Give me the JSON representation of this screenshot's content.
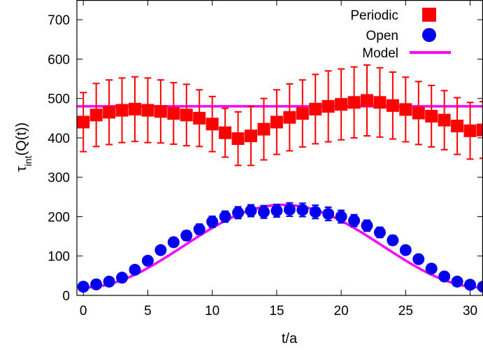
{
  "chart_data": {
    "type": "scatter",
    "xlabel": "t/a",
    "ylabel_main": "τ",
    "ylabel_sub": "int",
    "ylabel_rest": "(Q(t))",
    "xlim": [
      -0.5,
      31
    ],
    "ylim": [
      0,
      750
    ],
    "xticks": [
      0,
      5,
      10,
      15,
      20,
      25,
      30
    ],
    "yticks": [
      0,
      100,
      200,
      300,
      400,
      500,
      600,
      700
    ],
    "legend_position": "top-right",
    "series": [
      {
        "name": "Periodic",
        "marker": "square",
        "color": "#ff0000",
        "x": [
          0,
          1,
          2,
          3,
          4,
          5,
          6,
          7,
          8,
          9,
          10,
          11,
          12,
          13,
          14,
          15,
          16,
          17,
          18,
          19,
          20,
          21,
          22,
          23,
          24,
          25,
          26,
          27,
          28,
          29,
          30,
          31
        ],
        "y": [
          440,
          458,
          465,
          470,
          473,
          470,
          467,
          462,
          458,
          450,
          435,
          413,
          398,
          405,
          422,
          440,
          452,
          462,
          473,
          480,
          485,
          490,
          495,
          490,
          482,
          472,
          463,
          455,
          445,
          430,
          418,
          420
        ],
        "yerr": [
          75,
          80,
          82,
          82,
          82,
          82,
          80,
          78,
          78,
          72,
          70,
          62,
          68,
          75,
          78,
          82,
          85,
          85,
          88,
          90,
          90,
          90,
          90,
          88,
          85,
          82,
          80,
          78,
          75,
          72,
          72,
          72
        ]
      },
      {
        "name": "Open",
        "marker": "circle",
        "color": "#0000ee",
        "x": [
          0,
          1,
          2,
          3,
          4,
          5,
          6,
          7,
          8,
          9,
          10,
          11,
          12,
          13,
          14,
          15,
          16,
          17,
          18,
          19,
          20,
          21,
          22,
          23,
          24,
          25,
          26,
          27,
          28,
          29,
          30,
          31
        ],
        "y": [
          22,
          28,
          35,
          45,
          65,
          88,
          115,
          135,
          152,
          168,
          187,
          200,
          210,
          215,
          212,
          215,
          218,
          217,
          212,
          207,
          200,
          190,
          177,
          160,
          140,
          115,
          92,
          68,
          48,
          35,
          27,
          22
        ],
        "yerr": [
          5,
          5,
          6,
          7,
          8,
          9,
          10,
          11,
          12,
          13,
          14,
          14,
          15,
          15,
          16,
          16,
          17,
          17,
          17,
          17,
          16,
          15,
          14,
          13,
          12,
          10,
          9,
          8,
          7,
          6,
          5,
          5
        ]
      },
      {
        "name": "Model",
        "type": "line",
        "color": "#ff00ff",
        "periodic_level": 480,
        "open_curve": {
          "offset": 20,
          "peak": 230,
          "center": 15.5,
          "period": 31
        }
      }
    ]
  }
}
